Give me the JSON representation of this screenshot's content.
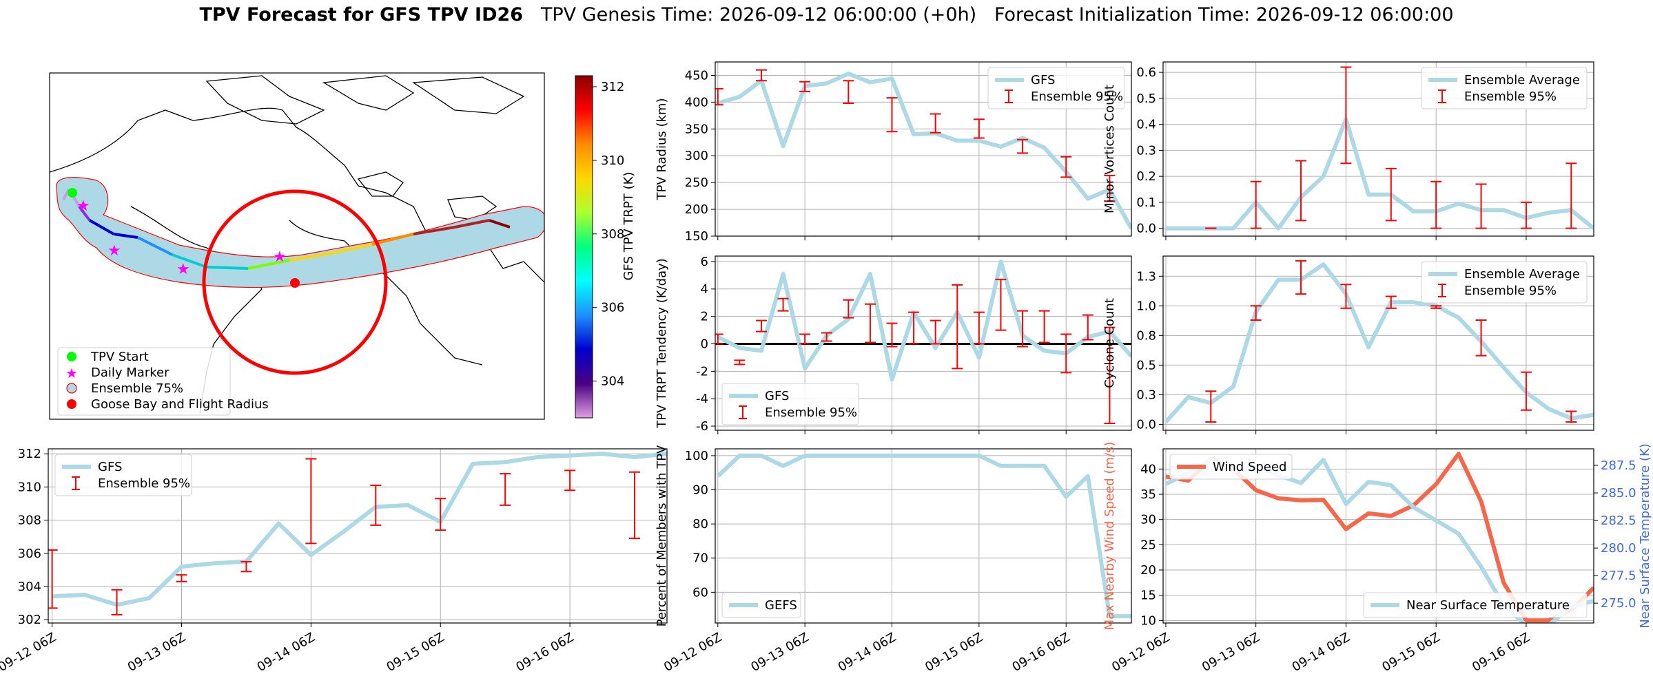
{
  "title": {
    "bold": "TPV Forecast for GFS TPV ID26",
    "rest": "   TPV Genesis Time: 2026-09-12 06:00:00 (+0h)   Forecast Initialization Time: 2026-09-12 06:00:00"
  },
  "colors": {
    "gfs_line": "#add8e6",
    "ensemble_bar": "#ff0000",
    "wind_line": "#f4674a",
    "temp_axis": "#4169e1",
    "marker_start": "#00ff00",
    "marker_daily": "#ff00ff",
    "goose_bay": "#ff0000"
  },
  "x_tick_labels": [
    "09-12 06Z",
    "09-13 06Z",
    "09-14 06Z",
    "09-15 06Z",
    "09-16 06Z"
  ],
  "chart_data": [
    {
      "id": "map",
      "type": "map",
      "legend": [
        "TPV Start",
        "Daily Marker",
        "Ensemble 75%",
        "Goose Bay and Flight Radius"
      ],
      "colorbar": {
        "label": "GFS TPV TRPT (K)",
        "ticks": [
          304,
          306,
          308,
          310,
          312
        ],
        "range": [
          303,
          312.3
        ]
      }
    },
    {
      "id": "radius",
      "type": "line",
      "ylabel": "TPV Radius (km)",
      "ylim": [
        150,
        475
      ],
      "yticks": [
        150,
        200,
        250,
        300,
        350,
        400,
        450
      ],
      "legend": [
        "GFS",
        "Ensemble 95%"
      ],
      "series": [
        {
          "name": "GFS",
          "x": [
            0,
            0.25,
            0.5,
            0.75,
            1,
            1.25,
            1.5,
            1.75,
            2,
            2.25,
            2.5,
            2.75,
            3,
            3.25,
            3.5,
            3.75,
            4,
            4.25,
            4.5,
            4.75
          ],
          "values": [
            398,
            410,
            440,
            318,
            430,
            435,
            453,
            437,
            444,
            340,
            342,
            328,
            328,
            317,
            333,
            315,
            270,
            220,
            237,
            164
          ]
        }
      ],
      "ensemble_95": [
        [
          0,
          395,
          425
        ],
        [
          0.5,
          440,
          460
        ],
        [
          1,
          420,
          438
        ],
        [
          1.5,
          398,
          440
        ],
        [
          2,
          345,
          408
        ],
        [
          2.5,
          343,
          378
        ],
        [
          3,
          333,
          368
        ],
        [
          3.5,
          305,
          330
        ],
        [
          4,
          260,
          298
        ],
        [
          4.5,
          215,
          263
        ]
      ]
    },
    {
      "id": "minor_vortices",
      "type": "line",
      "ylabel": "Minor Vortices Count",
      "ylim": [
        -0.03,
        0.64
      ],
      "yticks": [
        0.0,
        0.1,
        0.2,
        0.3,
        0.4,
        0.5,
        0.6
      ],
      "legend": [
        "Ensemble Average",
        "Ensemble 95%"
      ],
      "series": [
        {
          "name": "Ensemble Average",
          "x": [
            0,
            0.25,
            0.5,
            0.75,
            1,
            1.25,
            1.5,
            1.75,
            2,
            2.25,
            2.5,
            2.75,
            3,
            3.25,
            3.5,
            3.75,
            4,
            4.25,
            4.5,
            4.75
          ],
          "values": [
            0,
            0,
            0,
            0,
            0.1,
            0,
            0.12,
            0.2,
            0.42,
            0.13,
            0.13,
            0.065,
            0.065,
            0.095,
            0.07,
            0.07,
            0.04,
            0.06,
            0.07,
            0.0
          ]
        }
      ],
      "ensemble_95": [
        [
          0.5,
          0,
          0
        ],
        [
          1,
          0,
          0.18
        ],
        [
          1.5,
          0.03,
          0.26
        ],
        [
          2,
          0.25,
          0.62
        ],
        [
          2.5,
          0.03,
          0.23
        ],
        [
          3,
          0,
          0.18
        ],
        [
          3.5,
          0,
          0.17
        ],
        [
          4,
          0,
          0.1
        ],
        [
          4.5,
          0,
          0.25
        ]
      ]
    },
    {
      "id": "tendency",
      "type": "line",
      "ylabel": "TPV TRPT Tendency (K/day)",
      "ylim": [
        -6.3,
        6.4
      ],
      "yticks": [
        -6,
        -4,
        -2,
        0,
        2,
        4,
        6
      ],
      "legend": [
        "GFS",
        "Ensemble 95%"
      ],
      "series": [
        {
          "name": "GFS",
          "x": [
            0,
            0.25,
            0.5,
            0.75,
            1,
            1.25,
            1.5,
            1.75,
            2,
            2.25,
            2.5,
            2.75,
            3,
            3.25,
            3.5,
            3.75,
            4,
            4.25,
            4.5,
            4.75
          ],
          "values": [
            0.5,
            -0.3,
            -0.5,
            5.1,
            -1.8,
            0.6,
            1.8,
            5.1,
            -2.6,
            2.3,
            -0.3,
            2.3,
            -1.0,
            6.0,
            0.6,
            -0.5,
            -0.7,
            0.5,
            0.9,
            -0.9
          ]
        }
      ],
      "ensemble_95": [
        [
          0,
          0,
          0.7
        ],
        [
          0.25,
          -1.5,
          -1.2
        ],
        [
          0.5,
          0.9,
          1.7
        ],
        [
          0.75,
          2.4,
          3.3
        ],
        [
          1,
          0,
          0.7
        ],
        [
          1.25,
          0.2,
          0.8
        ],
        [
          1.5,
          1.9,
          3.2
        ],
        [
          1.75,
          0.1,
          2.9
        ],
        [
          2,
          -0.2,
          1.5
        ],
        [
          2.25,
          0,
          2.3
        ],
        [
          2.5,
          0,
          1.7
        ],
        [
          2.75,
          -1.8,
          4.3
        ],
        [
          3,
          0,
          2.3
        ],
        [
          3.25,
          1,
          4.7
        ],
        [
          3.5,
          -0.2,
          2.4
        ],
        [
          3.75,
          0.1,
          2.4
        ],
        [
          4,
          -2.1,
          0.7
        ],
        [
          4.25,
          0.3,
          2.1
        ],
        [
          4.5,
          -5.8,
          1.2
        ]
      ]
    },
    {
      "id": "cyclone",
      "type": "line",
      "ylabel": "Cyclone Count",
      "ylim": [
        -0.05,
        1.42
      ],
      "yticks": [
        0.0,
        0.25,
        0.5,
        0.75,
        1.0,
        1.25
      ],
      "legend": [
        "Ensemble Average",
        "Ensemble 95%"
      ],
      "series": [
        {
          "name": "Ensemble Average",
          "x": [
            0,
            0.25,
            0.5,
            0.75,
            1,
            1.25,
            1.5,
            1.75,
            2,
            2.25,
            2.5,
            2.75,
            3,
            3.25,
            3.5,
            3.75,
            4,
            4.25,
            4.5,
            4.75
          ],
          "values": [
            0.02,
            0.23,
            0.18,
            0.32,
            0.95,
            1.22,
            1.22,
            1.35,
            1.1,
            0.65,
            1.03,
            1.03,
            1.0,
            0.9,
            0.7,
            0.48,
            0.27,
            0.13,
            0.05,
            0.08
          ]
        }
      ],
      "ensemble_95": [
        [
          0.5,
          0.02,
          0.28
        ],
        [
          1,
          0.88,
          1.0
        ],
        [
          1.5,
          1.1,
          1.38
        ],
        [
          2,
          0.98,
          1.18
        ],
        [
          2.5,
          0.98,
          1.08
        ],
        [
          3,
          0.98,
          1.0
        ],
        [
          3.5,
          0.58,
          0.88
        ],
        [
          4,
          0.12,
          0.44
        ],
        [
          4.5,
          0.02,
          0.11
        ]
      ]
    },
    {
      "id": "trpt",
      "type": "line",
      "ylabel": "TPV TRPT (K)",
      "ylim": [
        301.8,
        312.3
      ],
      "yticks": [
        302,
        304,
        306,
        308,
        310,
        312
      ],
      "legend": [
        "GFS",
        "Ensemble 95%"
      ],
      "series": [
        {
          "name": "GFS",
          "x": [
            0,
            0.25,
            0.5,
            0.75,
            1,
            1.25,
            1.5,
            1.75,
            2,
            2.25,
            2.5,
            2.75,
            3,
            3.25,
            3.5,
            3.75,
            4,
            4.25,
            4.5,
            4.75
          ],
          "values": [
            303.4,
            303.5,
            302.9,
            303.3,
            305.2,
            305.4,
            305.5,
            307.8,
            305.9,
            307.3,
            308.8,
            308.9,
            307.9,
            311.4,
            311.5,
            311.8,
            311.9,
            312.0,
            311.8,
            312.0
          ]
        }
      ],
      "ensemble_95": [
        [
          0,
          302.7,
          306.2
        ],
        [
          0.5,
          302.3,
          303.8
        ],
        [
          1,
          304.3,
          304.7
        ],
        [
          1.5,
          304.9,
          305.5
        ],
        [
          2,
          306.6,
          311.7
        ],
        [
          2.5,
          307.7,
          310.1
        ],
        [
          3,
          307.4,
          309.3
        ],
        [
          3.5,
          308.9,
          310.8
        ],
        [
          4,
          309.8,
          311.0
        ],
        [
          4.5,
          306.9,
          310.9
        ]
      ]
    },
    {
      "id": "members",
      "type": "line",
      "ylabel": "Percent of Members with TPV",
      "ylim": [
        51,
        102
      ],
      "yticks": [
        60,
        70,
        80,
        90,
        100
      ],
      "legend": [
        "GEFS"
      ],
      "series": [
        {
          "name": "GEFS",
          "x": [
            0,
            0.25,
            0.5,
            0.75,
            1,
            1.25,
            1.5,
            1.75,
            2,
            2.25,
            2.5,
            2.75,
            3,
            3.25,
            3.5,
            3.75,
            4,
            4.25,
            4.5,
            4.75
          ],
          "values": [
            94,
            100,
            100,
            97,
            100,
            100,
            100,
            100,
            100,
            100,
            100,
            100,
            100,
            97,
            97,
            97,
            88,
            94,
            53,
            53
          ]
        }
      ]
    },
    {
      "id": "wind_temp",
      "type": "line",
      "ylabel": "Max Nearby Wind Speed (m/s)",
      "ylabel_right": "Near Surface Temperature (K)",
      "ylim": [
        9.5,
        44
      ],
      "yticks": [
        10,
        15,
        20,
        25,
        30,
        35,
        40
      ],
      "ylim_right": [
        273.2,
        289.0
      ],
      "yticks_right": [
        275.0,
        277.5,
        280.0,
        282.5,
        285.0,
        287.5
      ],
      "legend": [
        "Wind Speed",
        "Near Surface Temperature"
      ],
      "series": [
        {
          "name": "Wind Speed",
          "x": [
            0,
            0.25,
            0.5,
            0.75,
            1,
            1.25,
            1.5,
            1.75,
            2,
            2.25,
            2.5,
            2.75,
            3,
            3.25,
            3.5,
            3.75,
            4,
            4.25,
            4.5,
            4.75
          ],
          "values": [
            38.5,
            37.7,
            42,
            40,
            35.8,
            34.2,
            33.8,
            33.9,
            28.1,
            31.2,
            30.7,
            32.8,
            37,
            43,
            33.6,
            17.5,
            10,
            10,
            12,
            16.5
          ]
        },
        {
          "name": "Near Surface Temperature",
          "x": [
            0,
            0.25,
            0.5,
            0.75,
            1,
            1.25,
            1.5,
            1.75,
            2,
            2.25,
            2.5,
            2.75,
            3,
            3.25,
            3.5,
            3.75,
            4,
            4.25,
            4.5,
            4.75
          ],
          "values": [
            285.8,
            286.8,
            288.0,
            287.0,
            287.4,
            286.6,
            285.9,
            288.0,
            284.0,
            286.0,
            285.7,
            283.7,
            282.5,
            281.3,
            278.3,
            274.8,
            273.0,
            273.0,
            274.7,
            275.2
          ]
        }
      ]
    }
  ]
}
